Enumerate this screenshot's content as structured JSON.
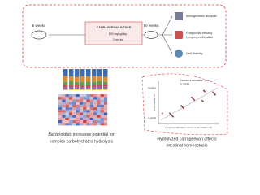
{
  "experiment": {
    "start": "8 weeks",
    "treatment": "CARRAGEENAN INTAKE",
    "dose": "100 mg/kg/day",
    "duration": "2 weeks",
    "end": "10 weeks",
    "analyses": [
      "Metagenomic analysis",
      "Phagocytic efficacy",
      "Lymphoproliferation",
      "Cell Viability"
    ]
  },
  "left_panel": {
    "caption_italic": "Bacteroidota",
    "caption_rest": " increases potential for",
    "caption_line2": "complex carbohydrates hydrolysis"
  },
  "right_panel": {
    "stat_line1": "Pearson's correlation: 0.88**",
    "stat_line2": "p < 0.01",
    "group1": "Control",
    "group2": "H-CGN",
    "y_label": "Cell Viability %",
    "x_label": "Lymphoproliferation (Cont vs stimulation %)",
    "caption_line1": "Hydrolyzed carrageenan affects",
    "caption_line2": "intestinal homeostasis"
  }
}
